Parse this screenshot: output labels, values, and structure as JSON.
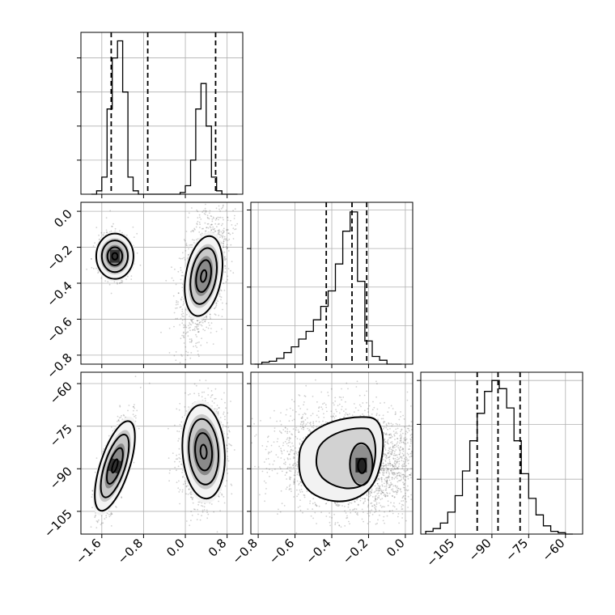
{
  "chart_data": [
    {
      "type": "histogram",
      "panel": "diagonal-1",
      "x_bins": [
        -1.8,
        -1.7,
        -1.6,
        -1.5,
        -1.4,
        -1.3,
        -1.2,
        -1.1,
        -1.0,
        -0.9,
        -0.8,
        -0.7,
        -0.6,
        -0.5,
        -0.4,
        -0.3,
        -0.2,
        -0.1,
        0.0,
        0.1,
        0.2,
        0.3,
        0.4,
        0.5,
        0.6,
        0.7,
        0.8,
        0.9,
        1.0
      ],
      "counts": [
        0,
        0.2,
        1,
        5,
        8,
        9,
        6,
        1,
        0.2,
        0,
        0,
        0,
        0,
        0,
        0,
        0,
        0,
        0.1,
        0.5,
        2,
        5,
        6.5,
        4,
        1,
        0.2,
        0,
        0,
        0
      ],
      "quantile_lines": [
        -1.42,
        -0.72,
        0.58
      ],
      "xlim": [
        -2.0,
        1.1
      ],
      "ylim": [
        0,
        9.5
      ],
      "grid": true
    },
    {
      "type": "scatter-density",
      "panel": "row2-col1",
      "clusters": [
        {
          "x": -1.35,
          "y": -0.25
        },
        {
          "x": 0.35,
          "y": -0.36
        }
      ],
      "xlim": [
        -2.0,
        1.1
      ],
      "ylim": [
        -0.85,
        0.05
      ],
      "y_ticks": [
        "0.0",
        "−0.2",
        "−0.4",
        "−0.6",
        "−0.8"
      ],
      "grid": true
    },
    {
      "type": "histogram",
      "panel": "diagonal-2",
      "x_bins": [
        -0.82,
        -0.78,
        -0.74,
        -0.7,
        -0.66,
        -0.62,
        -0.58,
        -0.54,
        -0.5,
        -0.46,
        -0.42,
        -0.38,
        -0.34,
        -0.3,
        -0.26,
        -0.22,
        -0.18,
        -0.14,
        -0.1,
        -0.06,
        -0.02
      ],
      "counts": [
        0,
        0.1,
        0.15,
        0.3,
        0.6,
        0.9,
        1.3,
        1.7,
        2.3,
        3,
        3.8,
        5.2,
        6.9,
        7.9,
        4.3,
        1.2,
        0.4,
        0.2,
        0,
        0
      ],
      "quantile_lines": [
        -0.43,
        -0.29,
        -0.21
      ],
      "xlim": [
        -0.84,
        0.04
      ],
      "ylim": [
        0,
        8.4
      ],
      "grid": true
    },
    {
      "type": "scatter-density",
      "panel": "row3-col1",
      "clusters": [
        {
          "x": -1.35,
          "y": -89
        },
        {
          "x": 0.35,
          "y": -84
        }
      ],
      "xlim": [
        -2.0,
        1.1
      ],
      "ylim": [
        -113,
        -56
      ],
      "x_ticks": [
        "−1.6",
        "−0.8",
        "0.0",
        "0.8"
      ],
      "y_ticks": [
        "−60",
        "−75",
        "−90",
        "−105"
      ],
      "grid": true
    },
    {
      "type": "scatter-density",
      "panel": "row3-col2",
      "clusters": [
        {
          "x": -0.24,
          "y": -89
        },
        {
          "x": -0.44,
          "y": -87
        }
      ],
      "xlim": [
        -0.84,
        0.04
      ],
      "ylim": [
        -113,
        -56
      ],
      "x_ticks": [
        "−0.8",
        "−0.6",
        "−0.4",
        "−0.2",
        "0.0"
      ],
      "grid": true
    },
    {
      "type": "histogram",
      "panel": "diagonal-3",
      "x_bins": [
        -117,
        -114,
        -111,
        -108,
        -105,
        -102,
        -99,
        -96,
        -93,
        -90,
        -87,
        -84,
        -81,
        -78,
        -75,
        -72,
        -69,
        -66,
        -63,
        -60,
        -57
      ],
      "counts": [
        0.1,
        0.2,
        0.4,
        0.8,
        1.4,
        2.3,
        3.4,
        4.4,
        5.2,
        5.6,
        5.3,
        4.6,
        3.4,
        2.2,
        1.3,
        0.7,
        0.3,
        0.1,
        0.05,
        0
      ],
      "quantile_lines": [
        -96,
        -87.5,
        -78.5
      ],
      "xlim": [
        -119,
        -53
      ],
      "ylim": [
        0,
        5.9
      ],
      "x_ticks": [
        "−105",
        "−90",
        "−75",
        "−60"
      ],
      "grid": true
    }
  ]
}
